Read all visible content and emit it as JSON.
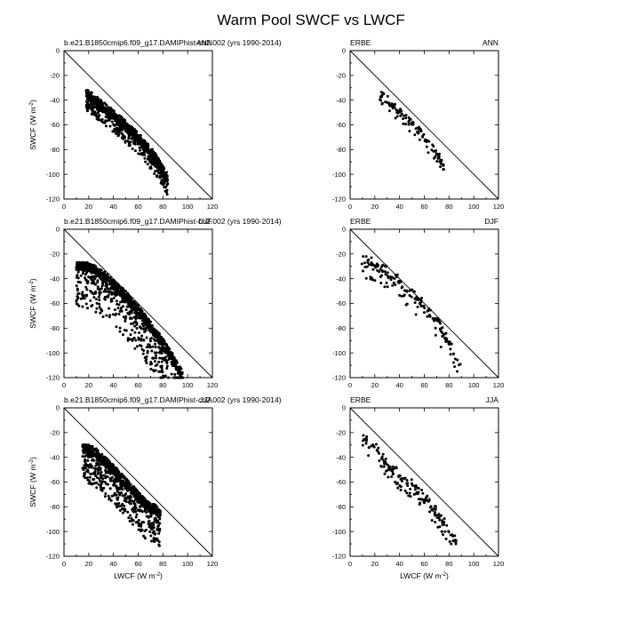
{
  "figure": {
    "title": "Warm Pool SWCF vs LWCF",
    "xlabel_html": [
      "LWCF (W m",
      "-2",
      ")"
    ],
    "ylabel_html": [
      "SWCF (W m",
      "-2",
      ")"
    ]
  },
  "chart_data": [
    {
      "type": "scatter",
      "panel": "model-ann",
      "left_label": "b.e21.B1850cmip6.f09_g17.DAMIPhist-co2.002 (yrs 1990-2014)",
      "right_label": "ANN",
      "xlim": [
        0,
        120
      ],
      "ylim": [
        -120,
        0
      ],
      "xticks": [
        0,
        20,
        40,
        60,
        80,
        100,
        120
      ],
      "yticks": [
        0,
        -20,
        -40,
        -60,
        -80,
        -100,
        -120
      ],
      "reference_line": [
        [
          0,
          0
        ],
        [
          120,
          -120
        ]
      ],
      "point_cloud": {
        "count": 900,
        "x_range": [
          18,
          84
        ],
        "y_range": [
          -118,
          -32
        ],
        "centerline": [
          [
            18,
            -34
          ],
          [
            30,
            -44
          ],
          [
            45,
            -56
          ],
          [
            60,
            -70
          ],
          [
            75,
            -88
          ],
          [
            84,
            -104
          ]
        ],
        "spread_above": 4,
        "spread_below": 14
      }
    },
    {
      "type": "scatter",
      "panel": "obs-ann",
      "left_label": "ERBE",
      "right_label": "ANN",
      "xlim": [
        0,
        120
      ],
      "ylim": [
        -120,
        0
      ],
      "xticks": [
        0,
        20,
        40,
        60,
        80,
        100,
        120
      ],
      "yticks": [
        0,
        -20,
        -40,
        -60,
        -80,
        -100,
        -120
      ],
      "reference_line": [
        [
          0,
          0
        ],
        [
          120,
          -120
        ]
      ],
      "point_cloud": {
        "count": 110,
        "x_range": [
          24,
          76
        ],
        "y_range": [
          -96,
          -32
        ],
        "centerline": [
          [
            24,
            -34
          ],
          [
            35,
            -44
          ],
          [
            45,
            -54
          ],
          [
            55,
            -64
          ],
          [
            65,
            -76
          ],
          [
            76,
            -92
          ]
        ],
        "spread_above": 3,
        "spread_below": 9
      }
    },
    {
      "type": "scatter",
      "panel": "model-djf",
      "left_label": "b.e21.B1850cmip6.f09_g17.DAMIPhist-co2.002 (yrs 1990-2014)",
      "right_label": "DJF",
      "xlim": [
        0,
        120
      ],
      "ylim": [
        -120,
        0
      ],
      "xticks": [
        0,
        20,
        40,
        60,
        80,
        100,
        120
      ],
      "yticks": [
        0,
        -20,
        -40,
        -60,
        -80,
        -100,
        -120
      ],
      "reference_line": [
        [
          0,
          0
        ],
        [
          120,
          -120
        ]
      ],
      "point_cloud": {
        "count": 1100,
        "x_range": [
          10,
          96
        ],
        "y_range": [
          -120,
          -27
        ],
        "centerline": [
          [
            10,
            -28
          ],
          [
            20,
            -30
          ],
          [
            35,
            -40
          ],
          [
            50,
            -54
          ],
          [
            65,
            -72
          ],
          [
            80,
            -92
          ],
          [
            96,
            -118
          ]
        ],
        "spread_above": 4,
        "spread_below": 34
      }
    },
    {
      "type": "scatter",
      "panel": "obs-djf",
      "left_label": "ERBE",
      "right_label": "DJF",
      "xlim": [
        0,
        120
      ],
      "ylim": [
        -120,
        0
      ],
      "xticks": [
        0,
        20,
        40,
        60,
        80,
        100,
        120
      ],
      "yticks": [
        0,
        -20,
        -40,
        -60,
        -80,
        -100,
        -120
      ],
      "reference_line": [
        [
          0,
          0
        ],
        [
          120,
          -120
        ]
      ],
      "point_cloud": {
        "count": 160,
        "x_range": [
          8,
          90
        ],
        "y_range": [
          -115,
          -22
        ],
        "centerline": [
          [
            8,
            -23
          ],
          [
            25,
            -30
          ],
          [
            40,
            -42
          ],
          [
            55,
            -56
          ],
          [
            70,
            -74
          ],
          [
            80,
            -92
          ],
          [
            90,
            -110
          ]
        ],
        "spread_above": 4,
        "spread_below": 16
      }
    },
    {
      "type": "scatter",
      "panel": "model-jja",
      "left_label": "b.e21.B1850cmip6.f09_g17.DAMIPhist-co2.002 (yrs 1990-2014)",
      "right_label": "JJA",
      "xlim": [
        0,
        120
      ],
      "ylim": [
        -120,
        0
      ],
      "xticks": [
        0,
        20,
        40,
        60,
        80,
        100,
        120
      ],
      "yticks": [
        0,
        -20,
        -40,
        -60,
        -80,
        -100,
        -120
      ],
      "reference_line": [
        [
          0,
          0
        ],
        [
          120,
          -120
        ]
      ],
      "point_cloud": {
        "count": 1000,
        "x_range": [
          15,
          78
        ],
        "y_range": [
          -115,
          -30
        ],
        "centerline": [
          [
            15,
            -31
          ],
          [
            25,
            -36
          ],
          [
            40,
            -50
          ],
          [
            55,
            -66
          ],
          [
            68,
            -80
          ],
          [
            78,
            -84
          ]
        ],
        "spread_above": 4,
        "spread_below": 28
      }
    },
    {
      "type": "scatter",
      "panel": "obs-jja",
      "left_label": "ERBE",
      "right_label": "JJA",
      "xlim": [
        0,
        120
      ],
      "ylim": [
        -120,
        0
      ],
      "xticks": [
        0,
        20,
        40,
        60,
        80,
        100,
        120
      ],
      "yticks": [
        0,
        -20,
        -40,
        -60,
        -80,
        -100,
        -120
      ],
      "reference_line": [
        [
          0,
          0
        ],
        [
          120,
          -120
        ]
      ],
      "point_cloud": {
        "count": 170,
        "x_range": [
          10,
          86
        ],
        "y_range": [
          -110,
          -22
        ],
        "centerline": [
          [
            10,
            -23
          ],
          [
            20,
            -32
          ],
          [
            35,
            -50
          ],
          [
            50,
            -62
          ],
          [
            65,
            -78
          ],
          [
            78,
            -95
          ],
          [
            86,
            -108
          ]
        ],
        "spread_above": 4,
        "spread_below": 12
      }
    }
  ]
}
